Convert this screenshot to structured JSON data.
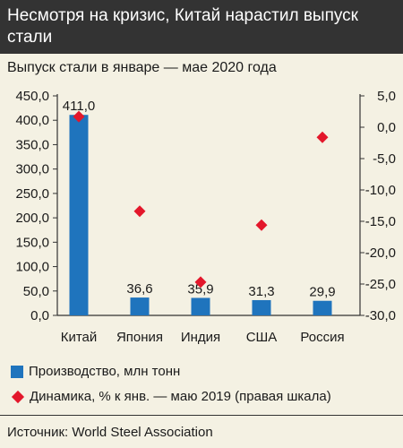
{
  "header": {
    "title": "Несмотря на кризис, Китай нарастил выпуск стали",
    "subtitle": "Выпуск стали в январе — мае 2020 года"
  },
  "legend": {
    "bars_label": "Производство, млн тонн",
    "markers_label": "Динамика, % к янв. — маю 2019 (правая шкала)"
  },
  "source": "Источник: World Steel Association",
  "colors": {
    "bar": "#1f74bd",
    "marker": "#e3172b",
    "title_background": "#333333",
    "background": "#f4f1e3"
  },
  "chart_data": {
    "type": "bar",
    "categories": [
      "Китай",
      "Япония",
      "Индия",
      "США",
      "Россия"
    ],
    "series": [
      {
        "name": "Производство, млн тонн",
        "axis": "left",
        "values": [
          411.0,
          36.6,
          35.9,
          31.3,
          29.9
        ],
        "data_labels": [
          "411,0",
          "36,6",
          "35,9",
          "31,3",
          "29,9"
        ]
      },
      {
        "name": "Динамика, % к янв. — маю 2019 (правая шкала)",
        "axis": "right",
        "marker": "diamond",
        "values": [
          1.7,
          -13.4,
          -24.7,
          -15.6,
          -1.6
        ]
      }
    ],
    "ylim_left": [
      0,
      450
    ],
    "yticks_left": [
      "0,0",
      "50,0",
      "100,0",
      "150,0",
      "200,0",
      "250,0",
      "300,0",
      "350,0",
      "400,0",
      "450,0"
    ],
    "ylim_right": [
      -30,
      5
    ],
    "yticks_right": [
      "5,0",
      "0,0",
      "-5,0",
      "-10,0",
      "-15,0",
      "-20,0",
      "-25,0",
      "-30,0"
    ],
    "grid": false,
    "legend_position": "bottom"
  }
}
